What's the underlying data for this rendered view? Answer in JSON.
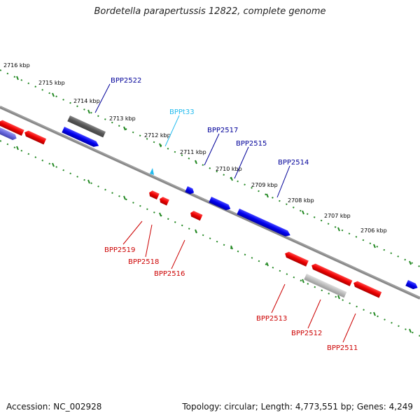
{
  "title": "Bordetella parapertussis 12822, complete genome",
  "footer": {
    "accession": "Accession: NC_002928",
    "summary": "Topology: circular; Length: 4,773,551 bp; Genes: 4,249"
  },
  "colors": {
    "forward": "#0000ee",
    "reverse": "#ee0000",
    "trna": "#22bbee",
    "pseudo_dark": "#666666",
    "pseudo_light": "#bbbbbb",
    "faded_forward": "#6666dd",
    "ruler": "#228822",
    "backbone": "#888888",
    "label_forward": "#000099",
    "label_reverse": "#cc0000",
    "label_trna": "#22bbee"
  },
  "kbp_ticks": [
    "2716 kbp",
    "2715 kbp",
    "2714 kbp",
    "2713 kbp",
    "2712 kbp",
    "2711 kbp",
    "2710 kbp",
    "2709 kbp",
    "2708 kbp",
    "2707 kbp",
    "2706 kbp"
  ],
  "labels": {
    "forward": [
      "BPP2522",
      "BPPt33",
      "BPP2517",
      "BPP2515",
      "BPP2514"
    ],
    "reverse": [
      "BPP2519",
      "BPP2518",
      "BPP2516",
      "BPP2513",
      "BPP2512",
      "BPP2511"
    ]
  }
}
